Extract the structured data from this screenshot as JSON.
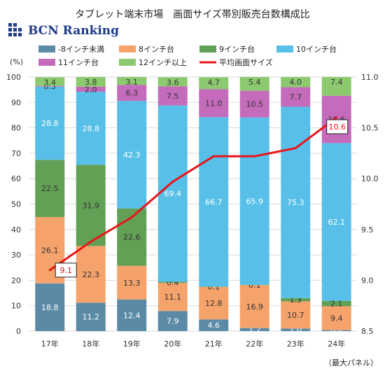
{
  "title": "タブレット端末市場　画面サイズ帯別販売台数構成比",
  "logo_text": "BCN Ranking",
  "footnote": "（最大パネル）",
  "chart_data": {
    "type": "bar",
    "stacked": true,
    "categories": [
      "17年",
      "18年",
      "19年",
      "20年",
      "21年",
      "22年",
      "23年",
      "24年"
    ],
    "y_unit_label": "(%)",
    "ylim": [
      0,
      100
    ],
    "yticks": [
      0,
      10,
      20,
      30,
      40,
      50,
      60,
      70,
      80,
      90,
      100
    ],
    "y2lim": [
      8.5,
      11.0
    ],
    "y2ticks": [
      "8.5",
      "9.0",
      "9.5",
      "10.0",
      "10.5",
      "11.0"
    ],
    "series": [
      {
        "name": "-8インチ未満",
        "color": "#5a8aa6",
        "values": [
          18.8,
          11.2,
          12.4,
          7.9,
          4.6,
          1.2,
          1.0,
          0.4
        ]
      },
      {
        "name": "8インチ台",
        "color": "#f5a36b",
        "values": [
          26.1,
          22.3,
          13.3,
          11.1,
          12.8,
          16.9,
          10.7,
          9.4
        ]
      },
      {
        "name": "9インチ台",
        "color": "#62a055",
        "values": [
          22.5,
          31.9,
          22.6,
          0.4,
          0.1,
          0.1,
          1.3,
          2.1
        ]
      },
      {
        "name": "10インチ台",
        "color": "#58c0e8",
        "values": [
          28.8,
          28.8,
          42.3,
          69.4,
          66.7,
          65.9,
          75.3,
          62.1
        ]
      },
      {
        "name": "11インチ台",
        "color": "#c46bbb",
        "values": [
          0.3,
          2.0,
          6.3,
          7.5,
          11.0,
          10.5,
          7.7,
          18.6
        ]
      },
      {
        "name": "12インチ以上",
        "color": "#8cc96f",
        "values": [
          3.4,
          3.8,
          3.1,
          3.6,
          4.7,
          5.4,
          4.0,
          7.4
        ]
      }
    ],
    "line": {
      "name": "平均画面サイズ",
      "color": "#e8141a",
      "values": [
        9.1,
        9.38,
        9.62,
        9.97,
        10.22,
        10.22,
        10.3,
        10.6
      ],
      "boxed_labels": {
        "first": "9.1",
        "last": "10.6"
      }
    }
  }
}
